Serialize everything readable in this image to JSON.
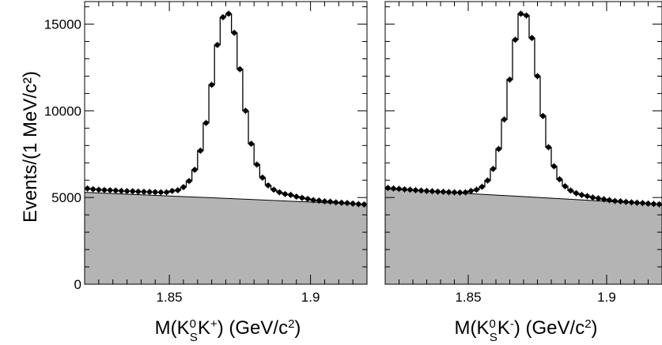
{
  "y_axis_title": "Events/(1 MeV/c²)",
  "colors": {
    "background_fill": "#b4b4b4",
    "line": "#000000",
    "points": "#000000"
  },
  "chart_data": [
    {
      "type": "line",
      "xlabel": "M(KS0K+) (GeV/c²)",
      "xlabel_parts": {
        "pre": "M(K",
        "sup1": "0",
        "sub1": "S",
        "mid": "K",
        "sup2": "+",
        "post": ") (GeV/c",
        "sup3": "2",
        "end": ")"
      },
      "ylabel": "Events/(1 MeV/c²)",
      "xlim": [
        1.82,
        1.92
      ],
      "ylim": [
        0,
        16300
      ],
      "xticks": [
        1.85,
        1.9
      ],
      "xtick_labels": [
        "1.85",
        "1.9"
      ],
      "yticks": [
        0,
        5000,
        10000,
        15000
      ],
      "ytick_labels": [
        "0",
        "5000",
        "10000",
        "15000"
      ],
      "background": {
        "x": [
          1.82,
          1.92
        ],
        "y": [
          5300,
          4600
        ]
      },
      "series": [
        {
          "x": [
            1.821,
            1.823,
            1.825,
            1.827,
            1.829,
            1.831,
            1.833,
            1.835,
            1.837,
            1.839,
            1.841,
            1.843,
            1.845,
            1.847,
            1.849,
            1.851,
            1.853,
            1.855,
            1.857,
            1.859,
            1.861,
            1.863,
            1.865,
            1.867,
            1.869,
            1.871,
            1.873,
            1.875,
            1.877,
            1.879,
            1.881,
            1.883,
            1.885,
            1.887,
            1.889,
            1.891,
            1.893,
            1.895,
            1.897,
            1.899,
            1.901,
            1.903,
            1.905,
            1.907,
            1.909,
            1.911,
            1.913,
            1.915,
            1.917,
            1.919
          ],
          "y": [
            5520,
            5480,
            5450,
            5430,
            5420,
            5400,
            5380,
            5370,
            5360,
            5340,
            5330,
            5320,
            5310,
            5300,
            5300,
            5380,
            5420,
            5600,
            5950,
            6600,
            7700,
            9300,
            11500,
            13800,
            15400,
            15600,
            14500,
            12400,
            10000,
            8100,
            6900,
            6150,
            5700,
            5450,
            5300,
            5200,
            5150,
            5050,
            4980,
            4920,
            4850,
            4820,
            4780,
            4760,
            4720,
            4700,
            4680,
            4650,
            4620,
            4600
          ]
        }
      ]
    },
    {
      "type": "line",
      "xlabel": "M(KS0K-) (GeV/c²)",
      "xlabel_parts": {
        "pre": "M(K",
        "sup1": "0",
        "sub1": "S",
        "mid": "K",
        "sup2": "-",
        "post": ") (GeV/c",
        "sup3": "2",
        "end": ")"
      },
      "xlim": [
        1.82,
        1.92
      ],
      "ylim": [
        0,
        16300
      ],
      "xticks": [
        1.85,
        1.9
      ],
      "xtick_labels": [
        "1.85",
        "1.9"
      ],
      "background": {
        "x": [
          1.82,
          1.92
        ],
        "y": [
          5500,
          4600
        ]
      },
      "series": [
        {
          "x": [
            1.821,
            1.823,
            1.825,
            1.827,
            1.829,
            1.831,
            1.833,
            1.835,
            1.837,
            1.839,
            1.841,
            1.843,
            1.845,
            1.847,
            1.849,
            1.851,
            1.853,
            1.855,
            1.857,
            1.859,
            1.861,
            1.863,
            1.865,
            1.867,
            1.869,
            1.871,
            1.873,
            1.875,
            1.877,
            1.879,
            1.881,
            1.883,
            1.885,
            1.887,
            1.889,
            1.891,
            1.893,
            1.895,
            1.897,
            1.899,
            1.901,
            1.903,
            1.905,
            1.907,
            1.909,
            1.911,
            1.913,
            1.915,
            1.917,
            1.919
          ],
          "y": [
            5550,
            5520,
            5500,
            5470,
            5450,
            5420,
            5400,
            5380,
            5360,
            5340,
            5330,
            5310,
            5300,
            5290,
            5300,
            5380,
            5450,
            5620,
            5980,
            6650,
            7800,
            9500,
            11800,
            14100,
            15600,
            15500,
            14200,
            12000,
            9700,
            7900,
            6800,
            6050,
            5650,
            5400,
            5250,
            5150,
            5080,
            5000,
            4950,
            4900,
            4850,
            4800,
            4780,
            4750,
            4720,
            4700,
            4680,
            4650,
            4630,
            4610
          ]
        }
      ]
    }
  ]
}
